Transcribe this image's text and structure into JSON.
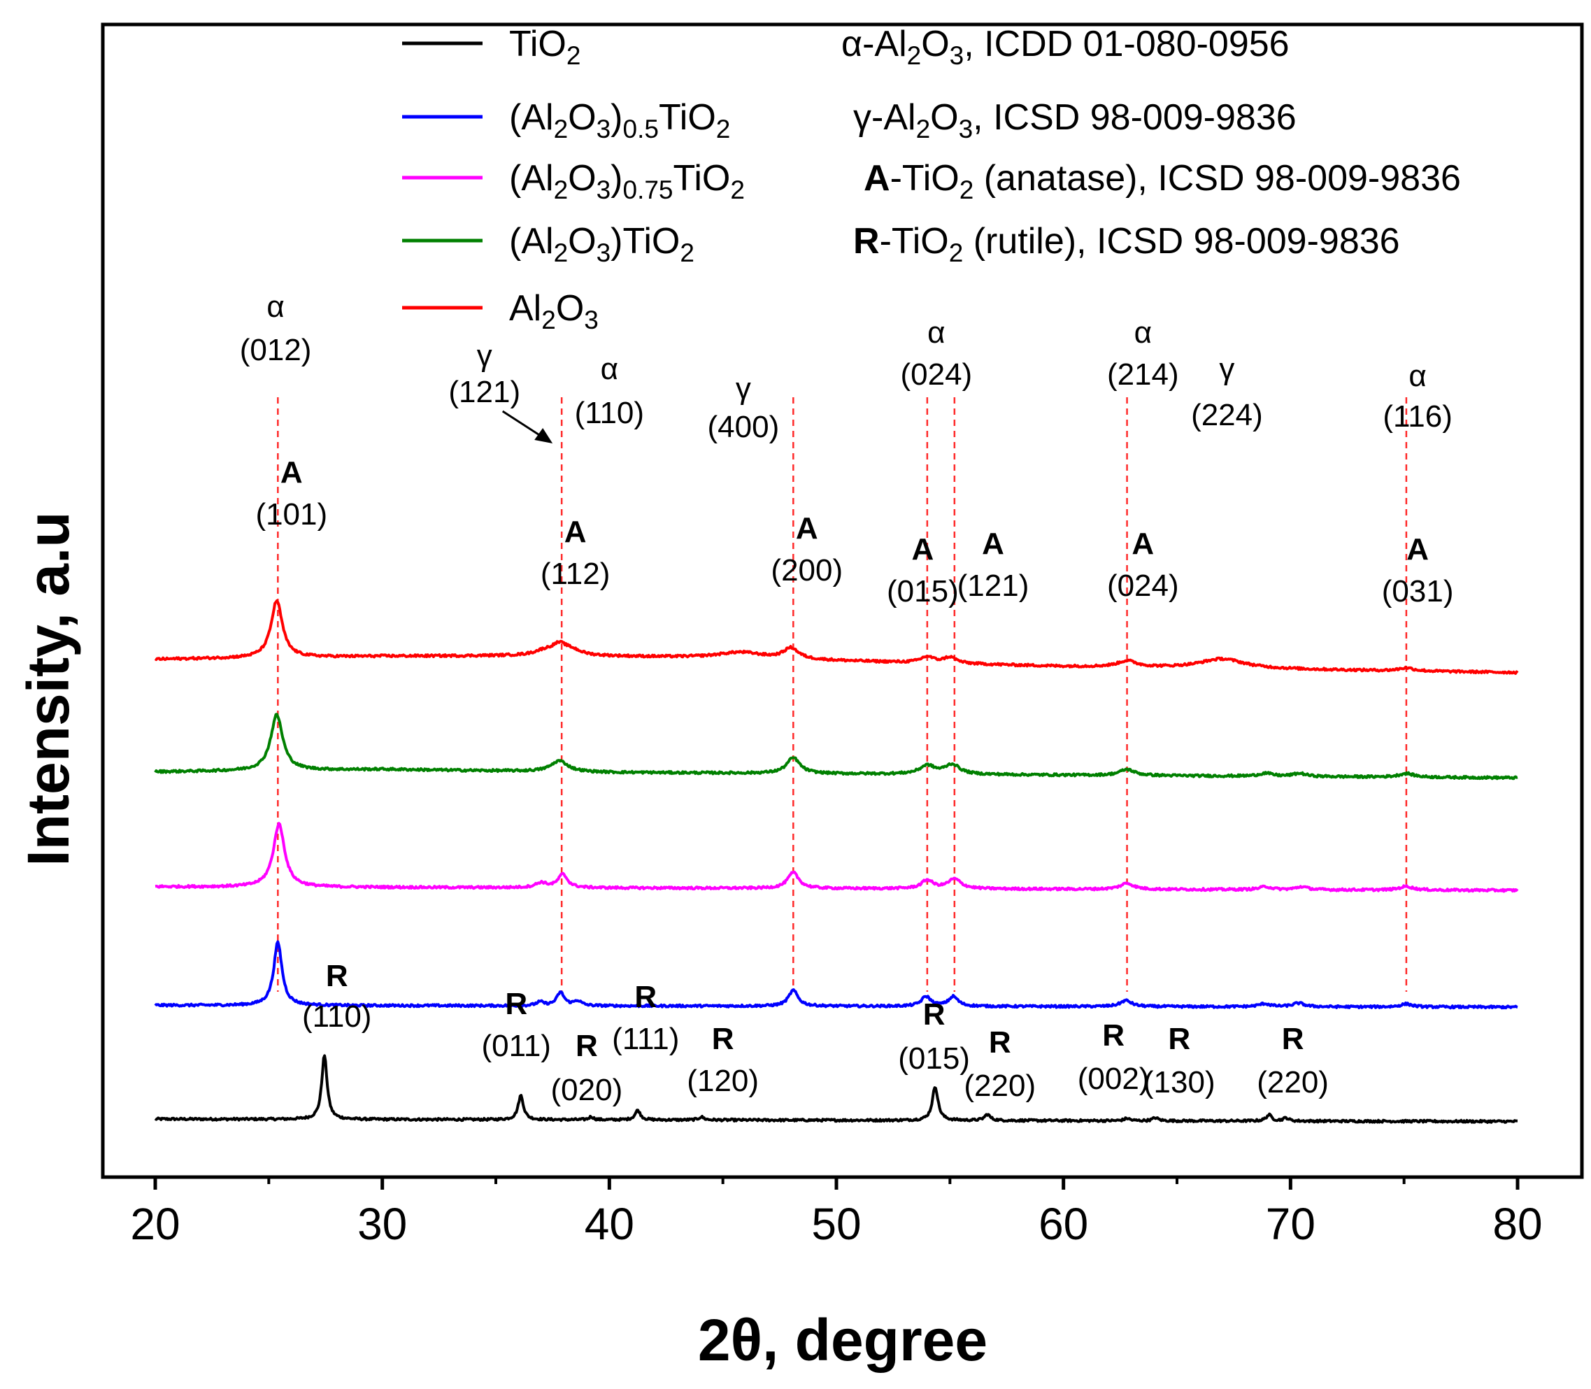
{
  "chart_data": {
    "type": "line",
    "title": "",
    "xlabel": "2θ, degree",
    "ylabel": "Intensity, a.u",
    "xlim": [
      20,
      80
    ],
    "xticks": [
      "20",
      "30",
      "40",
      "50",
      "60",
      "70",
      "80"
    ],
    "yticks_shown": false,
    "series": [
      {
        "name": "TiO2",
        "legend": {
          "base": "TiO",
          "sub": "2"
        },
        "color": "#000000",
        "offset": 0.0,
        "baseline": [
          [
            20,
            0.0
          ],
          [
            80,
            -0.02
          ]
        ],
        "peaks": [
          {
            "x": 27.45,
            "h": 0.53,
            "w": 0.14
          },
          {
            "x": 36.1,
            "h": 0.2,
            "w": 0.14
          },
          {
            "x": 39.2,
            "h": 0.025,
            "w": 0.12
          },
          {
            "x": 41.25,
            "h": 0.08,
            "w": 0.14
          },
          {
            "x": 44.05,
            "h": 0.025,
            "w": 0.14
          },
          {
            "x": 54.35,
            "h": 0.28,
            "w": 0.15
          },
          {
            "x": 56.65,
            "h": 0.05,
            "w": 0.15
          },
          {
            "x": 62.8,
            "h": 0.02,
            "w": 0.15
          },
          {
            "x": 64.05,
            "h": 0.025,
            "w": 0.15
          },
          {
            "x": 69.05,
            "h": 0.05,
            "w": 0.15
          },
          {
            "x": 69.8,
            "h": 0.025,
            "w": 0.15
          }
        ]
      },
      {
        "name": "(Al2O3)0.5TiO2",
        "legend": {
          "pre": "(Al",
          "sub1": "2",
          "mid": "O",
          "sub2": "3",
          "close": ")",
          "sub3": "0.5",
          "post": "TiO",
          "sub4": "2"
        },
        "color": "#0000ff",
        "offset": 0.94,
        "baseline": [
          [
            20,
            0.0
          ],
          [
            80,
            -0.015
          ]
        ],
        "peaks": [
          {
            "x": 25.4,
            "h": 0.52,
            "w": 0.22
          },
          {
            "x": 36.95,
            "h": 0.03,
            "w": 0.2
          },
          {
            "x": 37.85,
            "h": 0.11,
            "w": 0.2
          },
          {
            "x": 38.6,
            "h": 0.04,
            "w": 0.2
          },
          {
            "x": 48.1,
            "h": 0.13,
            "w": 0.25
          },
          {
            "x": 53.95,
            "h": 0.08,
            "w": 0.25
          },
          {
            "x": 55.15,
            "h": 0.08,
            "w": 0.25
          },
          {
            "x": 62.75,
            "h": 0.05,
            "w": 0.3
          },
          {
            "x": 68.85,
            "h": 0.025,
            "w": 0.3
          },
          {
            "x": 70.35,
            "h": 0.03,
            "w": 0.3
          },
          {
            "x": 75.1,
            "h": 0.025,
            "w": 0.3
          }
        ]
      },
      {
        "name": "(Al2O3)0.75TiO2",
        "legend": {
          "pre": "(Al",
          "sub1": "2",
          "mid": "O",
          "sub2": "3",
          "close": ")",
          "sub3": "0.75",
          "post": "TiO",
          "sub4": "2"
        },
        "color": "#ff00ff",
        "offset": 1.92,
        "baseline": [
          [
            20,
            0.0
          ],
          [
            80,
            -0.03
          ]
        ],
        "peaks": [
          {
            "x": 25.45,
            "h": 0.52,
            "w": 0.3
          },
          {
            "x": 37.0,
            "h": 0.04,
            "w": 0.3
          },
          {
            "x": 37.95,
            "h": 0.11,
            "w": 0.25
          },
          {
            "x": 48.1,
            "h": 0.13,
            "w": 0.3
          },
          {
            "x": 54.0,
            "h": 0.07,
            "w": 0.3
          },
          {
            "x": 55.2,
            "h": 0.08,
            "w": 0.35
          },
          {
            "x": 62.8,
            "h": 0.05,
            "w": 0.35
          },
          {
            "x": 68.9,
            "h": 0.025,
            "w": 0.3
          },
          {
            "x": 70.5,
            "h": 0.025,
            "w": 0.3
          },
          {
            "x": 75.1,
            "h": 0.03,
            "w": 0.35
          }
        ]
      },
      {
        "name": "(Al2O3)TiO2",
        "legend": {
          "pre": "(Al",
          "sub1": "2",
          "mid": "O",
          "sub2": "3",
          "close": ")",
          "post": "TiO",
          "sub4": "2"
        },
        "color": "#008000",
        "offset": 2.87,
        "baseline": [
          [
            20,
            0.0
          ],
          [
            30,
            0.02
          ],
          [
            40,
            -0.005
          ],
          [
            80,
            -0.05
          ]
        ],
        "peaks": [
          {
            "x": 25.35,
            "h": 0.46,
            "w": 0.32
          },
          {
            "x": 37.8,
            "h": 0.09,
            "w": 0.45
          },
          {
            "x": 48.1,
            "h": 0.13,
            "w": 0.35
          },
          {
            "x": 54.0,
            "h": 0.07,
            "w": 0.4
          },
          {
            "x": 55.1,
            "h": 0.08,
            "w": 0.4
          },
          {
            "x": 62.8,
            "h": 0.05,
            "w": 0.4
          },
          {
            "x": 68.9,
            "h": 0.025,
            "w": 0.35
          },
          {
            "x": 70.4,
            "h": 0.025,
            "w": 0.35
          },
          {
            "x": 75.1,
            "h": 0.03,
            "w": 0.4
          }
        ]
      },
      {
        "name": "Al2O3",
        "legend": {
          "pre": "Al",
          "sub1": "2",
          "mid": "O",
          "sub2": "3"
        },
        "color": "#ff0000",
        "offset": 3.8,
        "baseline": [
          [
            20,
            0.0
          ],
          [
            30,
            0.025
          ],
          [
            38,
            0.03
          ],
          [
            45,
            0.01
          ],
          [
            60,
            -0.06
          ],
          [
            80,
            -0.11
          ]
        ],
        "peaks": [
          {
            "x": 25.35,
            "h": 0.47,
            "w": 0.3
          },
          {
            "x": 37.1,
            "h": 0.03,
            "w": 0.5
          },
          {
            "x": 37.8,
            "h": 0.09,
            "w": 0.45
          },
          {
            "x": 38.4,
            "h": 0.03,
            "w": 0.45
          },
          {
            "x": 45.8,
            "h": 0.05,
            "w": 1.2
          },
          {
            "x": 48.0,
            "h": 0.09,
            "w": 0.4
          },
          {
            "x": 54.0,
            "h": 0.05,
            "w": 0.35
          },
          {
            "x": 55.0,
            "h": 0.05,
            "w": 0.35
          },
          {
            "x": 62.8,
            "h": 0.05,
            "w": 0.5
          },
          {
            "x": 67.0,
            "h": 0.08,
            "w": 1.2
          },
          {
            "x": 75.1,
            "h": 0.025,
            "w": 0.4
          }
        ]
      }
    ],
    "reference_lines_x": [
      25.4,
      37.9,
      48.1,
      54.0,
      55.2,
      62.8,
      75.1
    ],
    "reference_legend": [
      {
        "pre": "α-Al",
        "sub1": "2",
        "mid": "O",
        "sub2": "3",
        "post": ", ICDD 01-080-0956"
      },
      {
        "pre": "γ-Al",
        "sub1": "2",
        "mid": "O",
        "sub2": "3",
        "post": ", ICSD 98-009-9836"
      },
      {
        "bold": "A",
        "pre": "-TiO",
        "sub1": "2",
        "post": " (anatase), ICSD 98-009-9836"
      },
      {
        "bold": "R",
        "pre": "-TiO",
        "sub1": "2",
        "post": " (rutile), ICSD 98-009-9836"
      }
    ],
    "annotations": {
      "alumina": [
        {
          "phase": "α",
          "hkl": "(012)",
          "x": 25.3
        },
        {
          "phase": "γ",
          "hkl": "(121)",
          "x": 34.5
        },
        {
          "phase": "α",
          "hkl": "(110)",
          "x": 40.0
        },
        {
          "phase": "γ",
          "hkl": "(400)",
          "x": 45.9
        },
        {
          "phase": "α",
          "hkl": "(024)",
          "x": 54.4
        },
        {
          "phase": "α",
          "hkl": "(214)",
          "x": 63.5
        },
        {
          "phase": "γ",
          "hkl": "(224)",
          "x": 67.2
        },
        {
          "phase": "α",
          "hkl": "(116)",
          "x": 75.6
        }
      ],
      "anatase": [
        {
          "phase": "A",
          "hkl": "(101)",
          "x": 26.0
        },
        {
          "phase": "A",
          "hkl": "(112)",
          "x": 38.5
        },
        {
          "phase": "A",
          "hkl": "(200)",
          "x": 48.7
        },
        {
          "phase": "A",
          "hkl": "(015)",
          "x": 53.8
        },
        {
          "phase": "A",
          "hkl": "(121)",
          "x": 56.9
        },
        {
          "phase": "A",
          "hkl": "(024)",
          "x": 63.5
        },
        {
          "phase": "A",
          "hkl": "(031)",
          "x": 75.6
        }
      ],
      "rutile": [
        {
          "phase": "R",
          "hkl": "(110)",
          "x": 28.0
        },
        {
          "phase": "R",
          "hkl": "(011)",
          "x": 35.9
        },
        {
          "phase": "R",
          "hkl": "(020)",
          "x": 39.0
        },
        {
          "phase": "R",
          "hkl": "(111)",
          "x": 41.6
        },
        {
          "phase": "R",
          "hkl": "(120)",
          "x": 45.0
        },
        {
          "phase": "R",
          "hkl": "(015)",
          "x": 54.3
        },
        {
          "phase": "R",
          "hkl": "(220)",
          "x": 57.2
        },
        {
          "phase": "R",
          "hkl": "(002)",
          "x": 62.2
        },
        {
          "phase": "R",
          "hkl": "(130)",
          "x": 65.1
        },
        {
          "phase": "R",
          "hkl": "(220)",
          "x": 70.1
        }
      ]
    }
  }
}
